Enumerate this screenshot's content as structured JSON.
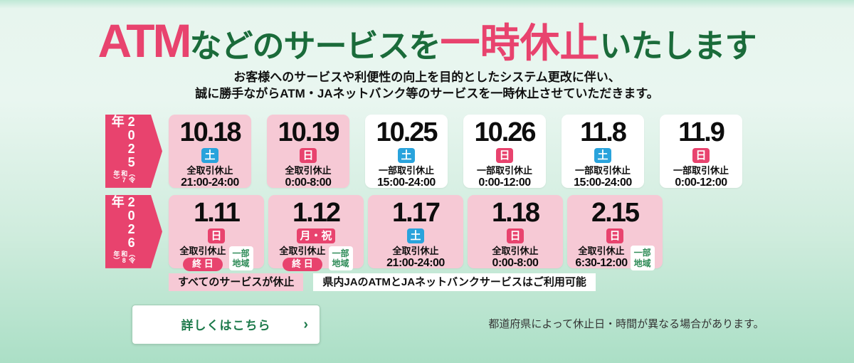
{
  "header": {
    "title": {
      "atm": "ATM",
      "mid": "などのサービスを",
      "pause": "一時休止",
      "suffix": "いたします"
    },
    "subtitle_line1": "お客様へのサービスや利便性の向上を目的としたシステム更改に伴い、",
    "subtitle_line2": "誠に勝手ながらATM・JAネットバンク等のサービスを一時休止させていただきます。"
  },
  "schedule": {
    "rows": [
      {
        "year": "2025年",
        "era": "（令和7年）",
        "cards": [
          {
            "date": "10.18",
            "day": "土",
            "day_type": "sat",
            "service": "全取引休止",
            "time": "21:00-24:00",
            "highlight": true
          },
          {
            "date": "10.19",
            "day": "日",
            "day_type": "sun",
            "service": "全取引休止",
            "time": "0:00-8:00",
            "highlight": true
          },
          {
            "date": "10.25",
            "day": "土",
            "day_type": "sat",
            "service": "一部取引休止",
            "time": "15:00-24:00",
            "highlight": false
          },
          {
            "date": "10.26",
            "day": "日",
            "day_type": "sun",
            "service": "一部取引休止",
            "time": "0:00-12:00",
            "highlight": false
          },
          {
            "date": "11.8",
            "day": "土",
            "day_type": "sat",
            "service": "一部取引休止",
            "time": "15:00-24:00",
            "highlight": false
          },
          {
            "date": "11.9",
            "day": "日",
            "day_type": "sun",
            "service": "一部取引休止",
            "time": "0:00-12:00",
            "highlight": false
          }
        ]
      },
      {
        "year": "2026年",
        "era": "（令和8年）",
        "cards": [
          {
            "date": "1.11",
            "day": "日",
            "day_type": "sun",
            "service": "全取引休止",
            "all_day_badge": "終 日",
            "region_note": "一部\n地域",
            "highlight": true
          },
          {
            "date": "1.12",
            "day": "月・祝",
            "day_type": "holiday",
            "service": "全取引休止",
            "all_day_badge": "終 日",
            "region_note": "一部\n地域",
            "highlight": true
          },
          {
            "date": "1.17",
            "day": "土",
            "day_type": "sat",
            "service": "全取引休止",
            "time": "21:00-24:00",
            "highlight": true
          },
          {
            "date": "1.18",
            "day": "日",
            "day_type": "sun",
            "service": "全取引休止",
            "time": "0:00-8:00",
            "highlight": true
          },
          {
            "date": "2.15",
            "day": "日",
            "day_type": "sun",
            "service": "全取引休止",
            "time": "6:30-12:00",
            "region_note": "一部\n地域",
            "highlight": true
          }
        ]
      }
    ],
    "legend": [
      {
        "label": "すべてのサービスが休止",
        "style": "pink"
      },
      {
        "label": "県内JAのATMとJAネットバンクサービスはご利用可能",
        "style": "white"
      }
    ]
  },
  "footer": {
    "cta_label": "詳しくはこちら",
    "cta_chevron": "›",
    "note": "都道府県によって休止日・時間が異なる場合があります。"
  },
  "colors": {
    "accent_pink": "#e8436e",
    "card_pink": "#f6c9d5",
    "saturday_blue": "#29a3dc",
    "title_green": "#1a6b3a",
    "cta_green": "#1d7a4b",
    "region_green": "#2e8b57"
  }
}
